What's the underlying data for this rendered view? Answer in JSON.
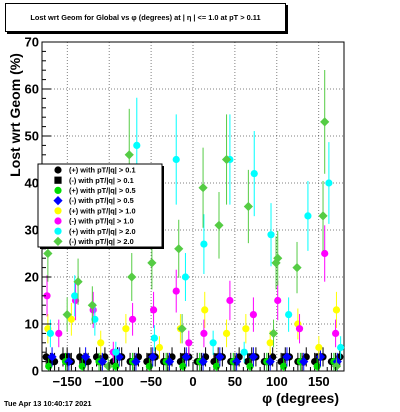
{
  "title": "Lost wrt Geom for Global vs φ (degrees) at | η | <= 1.0 at pT > 0.11",
  "footer": "Tue Apr 13 10:40:17 2021",
  "chart_data": {
    "type": "scatter",
    "title": "Lost wrt Geom for Global vs φ (degrees) at | η | <= 1.0 at pT > 0.11",
    "xlabel": "φ (degrees)",
    "ylabel": "Lost wrt Geom (%)",
    "xlim": [
      -180,
      180
    ],
    "ylim": [
      0,
      70
    ],
    "xticks": [
      -150,
      -100,
      -50,
      0,
      50,
      100,
      150
    ],
    "xtick_labels": [
      "−150",
      "−100",
      "−50",
      "0",
      "50",
      "100",
      "150"
    ],
    "yticks": [
      0,
      10,
      20,
      30,
      40,
      50,
      60,
      70
    ],
    "grid": true,
    "legend_position": "left-center",
    "series": [
      {
        "name": "(+) with pT/|q| > 0.1",
        "color": "#000000",
        "marker": "circle",
        "points": [
          [
            -175,
            3
          ],
          [
            -165,
            2
          ],
          [
            -155,
            3
          ],
          [
            -145,
            2
          ],
          [
            -135,
            3
          ],
          [
            -125,
            2
          ],
          [
            -115,
            3
          ],
          [
            -105,
            3
          ],
          [
            -95,
            2
          ],
          [
            -85,
            3
          ],
          [
            -75,
            2
          ],
          [
            -65,
            3
          ],
          [
            -55,
            2
          ],
          [
            -45,
            3
          ],
          [
            -35,
            2
          ],
          [
            -25,
            3
          ],
          [
            -15,
            2
          ],
          [
            -5,
            3
          ],
          [
            5,
            2
          ],
          [
            15,
            3
          ],
          [
            25,
            2
          ],
          [
            35,
            3
          ],
          [
            45,
            2
          ],
          [
            55,
            3
          ],
          [
            65,
            2
          ],
          [
            75,
            3
          ],
          [
            85,
            2
          ],
          [
            95,
            3
          ],
          [
            105,
            2
          ],
          [
            115,
            3
          ],
          [
            125,
            2
          ],
          [
            135,
            3
          ],
          [
            145,
            2
          ],
          [
            155,
            3
          ],
          [
            165,
            2
          ],
          [
            175,
            3
          ]
        ]
      },
      {
        "name": "(-) with pT/|q| > 0.1",
        "color": "#000000",
        "marker": "square",
        "points": [
          [
            -170,
            2
          ],
          [
            -150,
            3
          ],
          [
            -130,
            2
          ],
          [
            -110,
            2
          ],
          [
            -90,
            3
          ],
          [
            -70,
            2
          ],
          [
            -50,
            3
          ],
          [
            -30,
            2
          ],
          [
            -10,
            3
          ],
          [
            10,
            2
          ],
          [
            30,
            3
          ],
          [
            50,
            2
          ],
          [
            70,
            3
          ],
          [
            90,
            2
          ],
          [
            110,
            3
          ],
          [
            130,
            2
          ],
          [
            150,
            3
          ],
          [
            170,
            2
          ]
        ]
      },
      {
        "name": "(+) with pT/|q| > 0.5",
        "color": "#00dd00",
        "marker": "circle",
        "points": [
          [
            -172,
            1
          ],
          [
            -152,
            2
          ],
          [
            -132,
            1
          ],
          [
            -112,
            2
          ],
          [
            -92,
            1
          ],
          [
            -72,
            2
          ],
          [
            -52,
            1
          ],
          [
            -32,
            2
          ],
          [
            -12,
            1
          ],
          [
            8,
            2
          ],
          [
            28,
            1
          ],
          [
            48,
            2
          ],
          [
            68,
            1
          ],
          [
            88,
            2
          ],
          [
            108,
            1
          ],
          [
            128,
            2
          ],
          [
            148,
            1
          ],
          [
            168,
            2
          ]
        ]
      },
      {
        "name": "(-) with pT/|q| > 0.5",
        "color": "#0000ff",
        "marker": "diamond",
        "points": [
          [
            -168,
            3
          ],
          [
            -148,
            2
          ],
          [
            -128,
            3
          ],
          [
            -108,
            2
          ],
          [
            -88,
            3
          ],
          [
            -68,
            2
          ],
          [
            -48,
            3
          ],
          [
            -28,
            2
          ],
          [
            -8,
            3
          ],
          [
            12,
            2
          ],
          [
            32,
            3
          ],
          [
            52,
            2
          ],
          [
            72,
            3
          ],
          [
            92,
            2
          ],
          [
            112,
            3
          ],
          [
            132,
            2
          ],
          [
            152,
            3
          ],
          [
            172,
            2
          ]
        ]
      },
      {
        "name": "(+) with pT/|q| > 1.0",
        "color": "#ffff00",
        "marker": "circle",
        "points": [
          [
            -173,
            9
          ],
          [
            -145,
            11
          ],
          [
            -110,
            6
          ],
          [
            -80,
            9
          ],
          [
            -40,
            5
          ],
          [
            -15,
            9
          ],
          [
            14,
            13
          ],
          [
            40,
            8
          ],
          [
            63,
            9
          ],
          [
            92,
            6
          ],
          [
            125,
            10
          ],
          [
            150,
            5
          ],
          [
            171,
            13
          ]
        ]
      },
      {
        "name": "(-) with pT/|q| > 1.0",
        "color": "#ff00ff",
        "marker": "circle",
        "points": [
          [
            -174,
            16
          ],
          [
            -160,
            8
          ],
          [
            -140,
            15
          ],
          [
            -119,
            13
          ],
          [
            -95,
            4
          ],
          [
            -72,
            11
          ],
          [
            -47,
            13
          ],
          [
            -20,
            17
          ],
          [
            -5,
            6
          ],
          [
            13,
            8
          ],
          [
            44,
            15
          ],
          [
            72,
            12
          ],
          [
            101,
            15
          ],
          [
            127,
            9
          ],
          [
            157,
            25
          ],
          [
            170,
            8
          ]
        ]
      },
      {
        "name": "(+) with pT/|q| > 2.0",
        "color": "#00ffff",
        "marker": "circle",
        "points": [
          [
            -170,
            8
          ],
          [
            -141,
            16
          ],
          [
            -117,
            11
          ],
          [
            -92,
            4
          ],
          [
            -67,
            48
          ],
          [
            -46,
            7
          ],
          [
            -20,
            45
          ],
          [
            -9,
            20
          ],
          [
            13,
            27
          ],
          [
            24,
            6
          ],
          [
            44,
            45
          ],
          [
            61,
            4
          ],
          [
            73,
            42
          ],
          [
            93,
            29
          ],
          [
            114,
            12
          ],
          [
            137,
            33
          ],
          [
            162,
            40
          ],
          [
            176,
            5
          ]
        ]
      },
      {
        "name": "(-) with pT/|q| > 2.0",
        "color": "#55cc44",
        "marker": "diamond",
        "points": [
          [
            -173,
            25
          ],
          [
            -150,
            12
          ],
          [
            -137,
            19
          ],
          [
            -120,
            14
          ],
          [
            -101,
            1
          ],
          [
            -73,
            20
          ],
          [
            -76,
            46
          ],
          [
            -49,
            23
          ],
          [
            -17,
            26
          ],
          [
            -13,
            9
          ],
          [
            12,
            39
          ],
          [
            31,
            31
          ],
          [
            40,
            45
          ],
          [
            66,
            35
          ],
          [
            96,
            8
          ],
          [
            99,
            23
          ],
          [
            101,
            24
          ],
          [
            124,
            22
          ],
          [
            155,
            33
          ],
          [
            157,
            53
          ],
          [
            171,
            1
          ]
        ]
      }
    ]
  }
}
